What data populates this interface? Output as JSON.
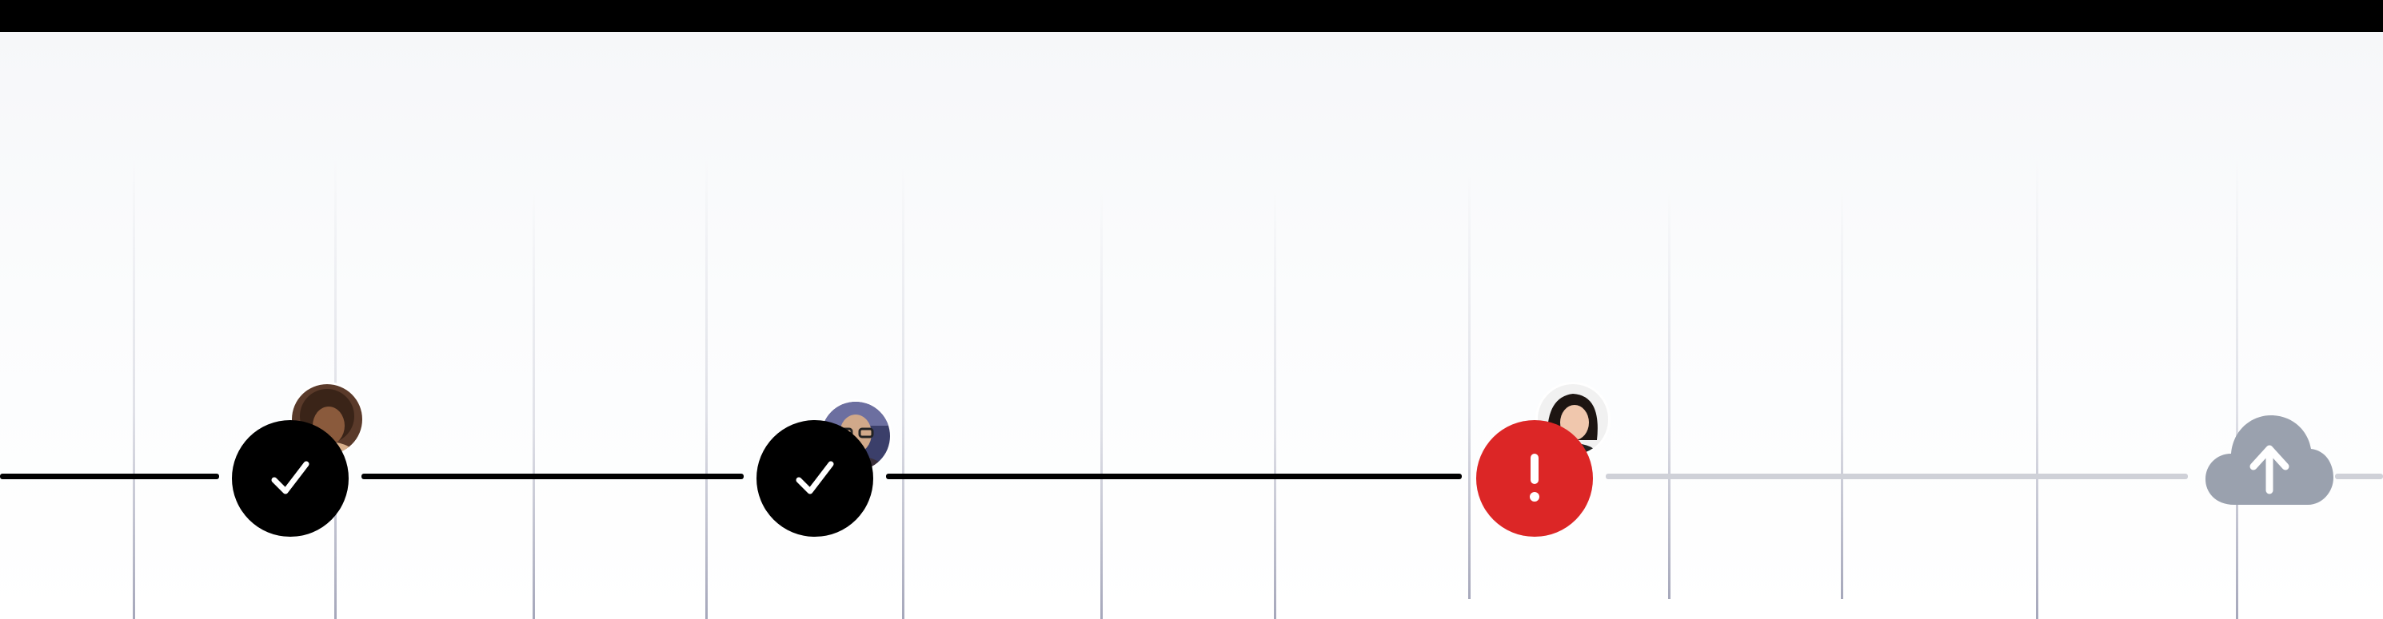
{
  "colors": {
    "header": "#000000",
    "done": "#000000",
    "error": "#dc2626",
    "pending_line": "#cfd1d8",
    "upcoming_icon": "#9aa1ae"
  },
  "timeline": {
    "steps": [
      {
        "status": "complete",
        "icon": "check-icon",
        "avatar": "avatar-woman-curly-hair"
      },
      {
        "status": "complete",
        "icon": "check-icon",
        "avatar": "avatar-man-glasses"
      },
      {
        "status": "error",
        "icon": "exclamation-icon",
        "avatar": "avatar-woman-dark-hair"
      },
      {
        "status": "upcoming",
        "icon": "cloud-upload-icon"
      }
    ]
  }
}
